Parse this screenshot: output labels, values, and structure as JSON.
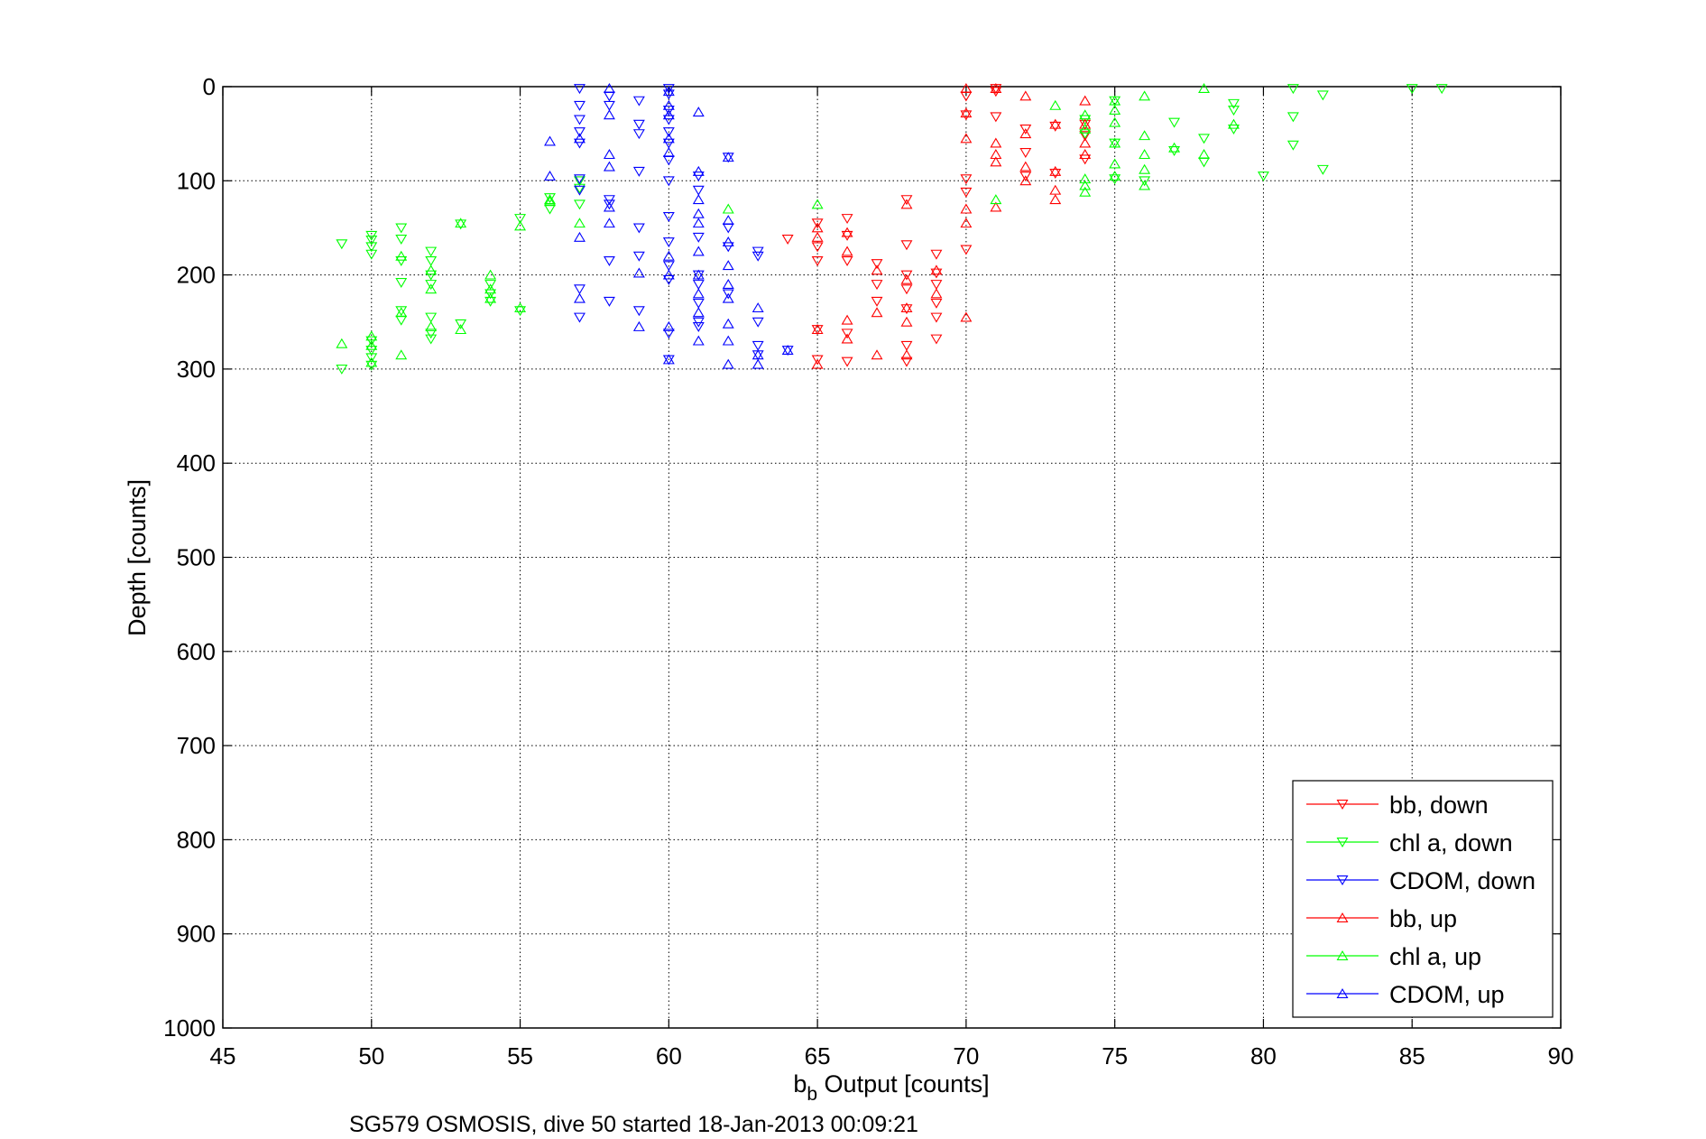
{
  "chart_data": {
    "type": "scatter",
    "title": "",
    "caption": "SG579 OSMOSIS, dive 50 started 18-Jan-2013 00:09:21",
    "xlabel_main": "b",
    "xlabel_sub": "b",
    "xlabel_rest": " Output [counts]",
    "ylabel": "Depth [counts]",
    "xlim": [
      45,
      90
    ],
    "ylim": [
      0,
      1000
    ],
    "y_reversed": true,
    "grid": true,
    "legend_position": "bottom-right",
    "x_ticks": [
      "45",
      "50",
      "55",
      "60",
      "65",
      "70",
      "75",
      "80",
      "85",
      "90"
    ],
    "y_ticks": [
      "0",
      "100",
      "200",
      "300",
      "400",
      "500",
      "600",
      "700",
      "800",
      "900",
      "1000"
    ],
    "series": [
      {
        "name": "bb, down",
        "color": "#ff0000",
        "marker": "triangle-down",
        "points": [
          [
            71,
            2
          ],
          [
            71,
            5
          ],
          [
            70,
            10
          ],
          [
            71,
            32
          ],
          [
            70,
            30
          ],
          [
            72,
            45
          ],
          [
            73,
            42
          ],
          [
            74,
            40
          ],
          [
            74,
            52
          ],
          [
            72,
            70
          ],
          [
            74,
            77
          ],
          [
            73,
            92
          ],
          [
            70,
            98
          ],
          [
            72,
            95
          ],
          [
            70,
            112
          ],
          [
            68,
            120
          ],
          [
            65,
            145
          ],
          [
            66,
            140
          ],
          [
            64,
            162
          ],
          [
            65,
            170
          ],
          [
            66,
            158
          ],
          [
            68,
            168
          ],
          [
            69,
            178
          ],
          [
            65,
            185
          ],
          [
            66,
            185
          ],
          [
            67,
            188
          ],
          [
            68,
            200
          ],
          [
            69,
            198
          ],
          [
            70,
            173
          ],
          [
            67,
            210
          ],
          [
            68,
            215
          ],
          [
            69,
            210
          ],
          [
            69,
            230
          ],
          [
            68,
            236
          ],
          [
            67,
            228
          ],
          [
            69,
            245
          ],
          [
            68,
            275
          ],
          [
            69,
            268
          ],
          [
            66,
            292
          ],
          [
            65,
            290
          ],
          [
            68,
            292
          ],
          [
            66,
            262
          ],
          [
            65,
            258
          ]
        ]
      },
      {
        "name": "chl a, down",
        "color": "#00ff00",
        "marker": "triangle-down",
        "points": [
          [
            86,
            2
          ],
          [
            85,
            2
          ],
          [
            81,
            2
          ],
          [
            82,
            9
          ],
          [
            79,
            18
          ],
          [
            79,
            25
          ],
          [
            77,
            38
          ],
          [
            78,
            55
          ],
          [
            79,
            45
          ],
          [
            81,
            32
          ],
          [
            81,
            62
          ],
          [
            78,
            80
          ],
          [
            80,
            95
          ],
          [
            82,
            88
          ],
          [
            76,
            100
          ],
          [
            75,
            98
          ],
          [
            75,
            60
          ],
          [
            77,
            68
          ],
          [
            74,
            50
          ],
          [
            75,
            15
          ],
          [
            74,
            35
          ],
          [
            49,
            167
          ],
          [
            50,
            158
          ],
          [
            50,
            163
          ],
          [
            50,
            170
          ],
          [
            50,
            178
          ],
          [
            51,
            150
          ],
          [
            51,
            162
          ],
          [
            51,
            185
          ],
          [
            52,
            175
          ],
          [
            52,
            185
          ],
          [
            52,
            200
          ],
          [
            52,
            210
          ],
          [
            51,
            208
          ],
          [
            52,
            245
          ],
          [
            51,
            248
          ],
          [
            53,
            146
          ],
          [
            53,
            252
          ],
          [
            54,
            210
          ],
          [
            54,
            220
          ],
          [
            54,
            228
          ],
          [
            55,
            140
          ],
          [
            55,
            238
          ],
          [
            56,
            130
          ],
          [
            56,
            118
          ],
          [
            57,
            125
          ],
          [
            57,
            100
          ],
          [
            57,
            108
          ],
          [
            50,
            270
          ],
          [
            50,
            280
          ],
          [
            50,
            288
          ],
          [
            50,
            296
          ],
          [
            49,
            300
          ],
          [
            51,
            238
          ],
          [
            52,
            262
          ],
          [
            52,
            268
          ]
        ]
      },
      {
        "name": "CDOM, down",
        "color": "#0000ff",
        "marker": "triangle-down",
        "points": [
          [
            57,
            2
          ],
          [
            57,
            20
          ],
          [
            57,
            35
          ],
          [
            57,
            48
          ],
          [
            57,
            60
          ],
          [
            58,
            10
          ],
          [
            58,
            20
          ],
          [
            59,
            15
          ],
          [
            59,
            40
          ],
          [
            59,
            50
          ],
          [
            59,
            90
          ],
          [
            60,
            2
          ],
          [
            60,
            8
          ],
          [
            60,
            25
          ],
          [
            60,
            35
          ],
          [
            60,
            48
          ],
          [
            60,
            60
          ],
          [
            60,
            78
          ],
          [
            60,
            100
          ],
          [
            60,
            138
          ],
          [
            60,
            165
          ],
          [
            60,
            190
          ],
          [
            60,
            205
          ],
          [
            60,
            262
          ],
          [
            60,
            290
          ],
          [
            58,
            120
          ],
          [
            58,
            125
          ],
          [
            58,
            185
          ],
          [
            58,
            228
          ],
          [
            59,
            150
          ],
          [
            59,
            180
          ],
          [
            59,
            238
          ],
          [
            57,
            98
          ],
          [
            57,
            110
          ],
          [
            57,
            215
          ],
          [
            57,
            245
          ],
          [
            61,
            95
          ],
          [
            61,
            110
          ],
          [
            61,
            160
          ],
          [
            61,
            200
          ],
          [
            61,
            210
          ],
          [
            61,
            230
          ],
          [
            61,
            250
          ],
          [
            62,
            75
          ],
          [
            62,
            150
          ],
          [
            62,
            170
          ],
          [
            62,
            220
          ],
          [
            63,
            175
          ],
          [
            63,
            180
          ],
          [
            63,
            250
          ],
          [
            63,
            275
          ],
          [
            63,
            285
          ],
          [
            64,
            280
          ],
          [
            61,
            255
          ]
        ]
      },
      {
        "name": "bb, up",
        "color": "#ff0000",
        "marker": "triangle-up",
        "points": [
          [
            70,
            2
          ],
          [
            71,
            2
          ],
          [
            72,
            10
          ],
          [
            73,
            40
          ],
          [
            74,
            15
          ],
          [
            70,
            28
          ],
          [
            71,
            60
          ],
          [
            71,
            72
          ],
          [
            72,
            50
          ],
          [
            72,
            85
          ],
          [
            73,
            90
          ],
          [
            72,
            100
          ],
          [
            74,
            60
          ],
          [
            74,
            40
          ],
          [
            74,
            72
          ],
          [
            73,
            110
          ],
          [
            73,
            120
          ],
          [
            71,
            128
          ],
          [
            70,
            130
          ],
          [
            70,
            145
          ],
          [
            70,
            55
          ],
          [
            71,
            80
          ],
          [
            70,
            245
          ],
          [
            68,
            125
          ],
          [
            69,
            195
          ],
          [
            69,
            220
          ],
          [
            68,
            205
          ],
          [
            68,
            235
          ],
          [
            68,
            250
          ],
          [
            68,
            285
          ],
          [
            67,
            195
          ],
          [
            67,
            240
          ],
          [
            67,
            285
          ],
          [
            66,
            155
          ],
          [
            66,
            175
          ],
          [
            66,
            248
          ],
          [
            66,
            268
          ],
          [
            65,
            150
          ],
          [
            65,
            160
          ],
          [
            65,
            258
          ],
          [
            65,
            295
          ]
        ]
      },
      {
        "name": "chl a, up",
        "color": "#00ff00",
        "marker": "triangle-up",
        "points": [
          [
            78,
            2
          ],
          [
            76,
            10
          ],
          [
            75,
            15
          ],
          [
            75,
            25
          ],
          [
            73,
            20
          ],
          [
            74,
            30
          ],
          [
            75,
            38
          ],
          [
            74,
            45
          ],
          [
            76,
            52
          ],
          [
            75,
            60
          ],
          [
            77,
            65
          ],
          [
            76,
            72
          ],
          [
            76,
            88
          ],
          [
            75,
            82
          ],
          [
            75,
            95
          ],
          [
            74,
            98
          ],
          [
            74,
            105
          ],
          [
            74,
            112
          ],
          [
            76,
            105
          ],
          [
            78,
            72
          ],
          [
            79,
            40
          ],
          [
            71,
            120
          ],
          [
            65,
            125
          ],
          [
            62,
            130
          ],
          [
            57,
            145
          ],
          [
            56,
            120
          ],
          [
            55,
            148
          ],
          [
            54,
            200
          ],
          [
            54,
            215
          ],
          [
            54,
            225
          ],
          [
            53,
            145
          ],
          [
            53,
            258
          ],
          [
            52,
            195
          ],
          [
            52,
            215
          ],
          [
            52,
            255
          ],
          [
            51,
            180
          ],
          [
            51,
            240
          ],
          [
            51,
            285
          ],
          [
            50,
            265
          ],
          [
            50,
            275
          ],
          [
            50,
            293
          ],
          [
            49,
            273
          ],
          [
            55,
            235
          ],
          [
            56,
            122
          ]
        ]
      },
      {
        "name": "CDOM, up",
        "color": "#0000ff",
        "marker": "triangle-up",
        "points": [
          [
            56,
            58
          ],
          [
            56,
            95
          ],
          [
            57,
            55
          ],
          [
            57,
            160
          ],
          [
            57,
            225
          ],
          [
            58,
            2
          ],
          [
            58,
            30
          ],
          [
            58,
            72
          ],
          [
            58,
            85
          ],
          [
            58,
            128
          ],
          [
            58,
            145
          ],
          [
            59,
            198
          ],
          [
            59,
            255
          ],
          [
            60,
            5
          ],
          [
            60,
            20
          ],
          [
            60,
            30
          ],
          [
            60,
            55
          ],
          [
            60,
            70
          ],
          [
            60,
            180
          ],
          [
            60,
            200
          ],
          [
            60,
            255
          ],
          [
            60,
            290
          ],
          [
            61,
            27
          ],
          [
            61,
            90
          ],
          [
            61,
            120
          ],
          [
            61,
            135
          ],
          [
            61,
            145
          ],
          [
            61,
            175
          ],
          [
            61,
            200
          ],
          [
            61,
            220
          ],
          [
            61,
            240
          ],
          [
            61,
            270
          ],
          [
            62,
            75
          ],
          [
            62,
            142
          ],
          [
            62,
            165
          ],
          [
            62,
            190
          ],
          [
            62,
            210
          ],
          [
            62,
            225
          ],
          [
            62,
            252
          ],
          [
            62,
            270
          ],
          [
            62,
            295
          ],
          [
            63,
            235
          ],
          [
            63,
            285
          ],
          [
            63,
            295
          ],
          [
            64,
            280
          ]
        ]
      }
    ]
  }
}
